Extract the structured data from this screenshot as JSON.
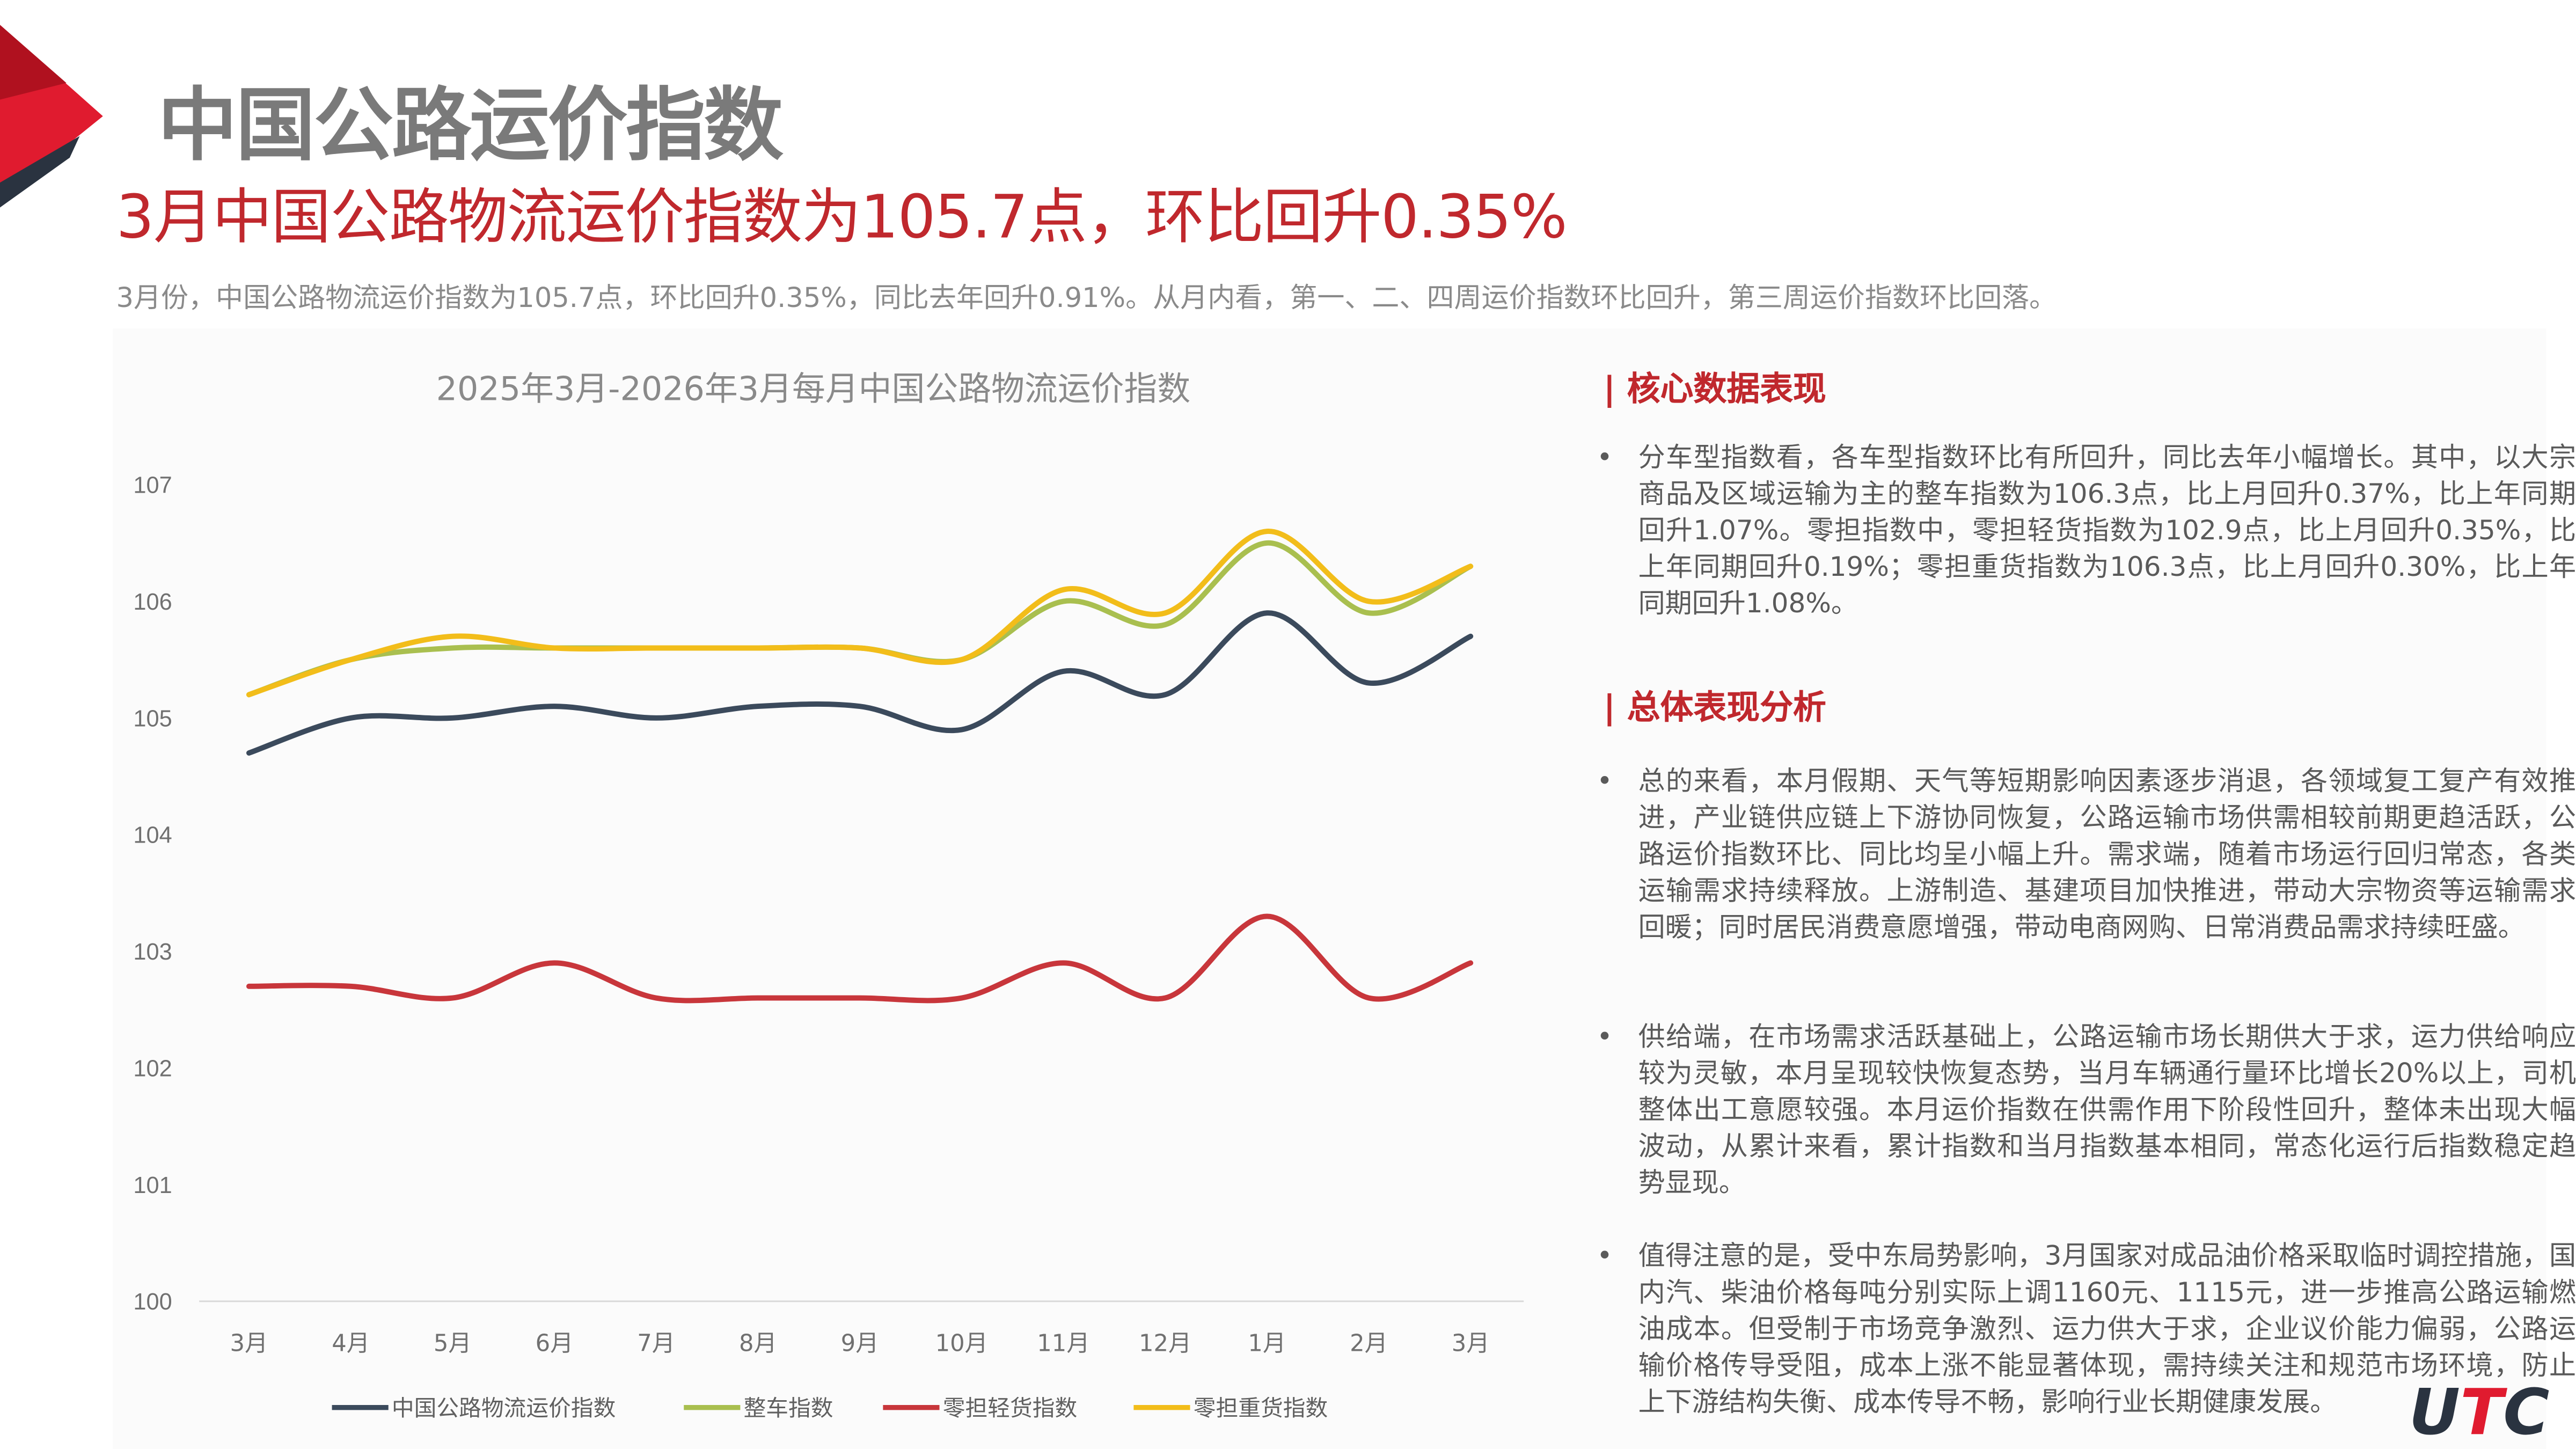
{
  "header": {
    "title": "中国公路运价指数",
    "headline": "3月中国公路物流运价指数为105.7点，环比回升0.35%",
    "summary": "3月份，中国公路物流运价指数为105.7点，环比回升0.35%，同比去年回升0.91%。从月内看，第一、二、四周运价指数环比回升，第三周运价指数环比回落。"
  },
  "chart_data": {
    "type": "line",
    "title": "2025年3月-2026年3月每月中国公路物流运价指数",
    "categories": [
      "3月",
      "4月",
      "5月",
      "6月",
      "7月",
      "8月",
      "9月",
      "10月",
      "11月",
      "12月",
      "1月",
      "2月",
      "3月"
    ],
    "ylim": [
      100,
      107
    ],
    "yticks": [
      "100",
      "101",
      "102",
      "103",
      "104",
      "105",
      "106",
      "107"
    ],
    "grid": false,
    "legend": "bottom",
    "series": [
      {
        "name": "中国公路物流运价指数",
        "color": "#3b4a5c",
        "values": [
          104.7,
          105.0,
          105.0,
          105.1,
          105.0,
          105.1,
          105.1,
          104.9,
          105.4,
          105.2,
          105.9,
          105.3,
          105.7
        ]
      },
      {
        "name": "整车指数",
        "color": "#a9bf4f",
        "values": [
          105.2,
          105.5,
          105.6,
          105.6,
          105.6,
          105.6,
          105.6,
          105.5,
          106.0,
          105.8,
          106.5,
          105.9,
          106.3
        ]
      },
      {
        "name": "零担轻货指数",
        "color": "#c8363b",
        "values": [
          102.7,
          102.7,
          102.6,
          102.9,
          102.6,
          102.6,
          102.6,
          102.6,
          102.9,
          102.6,
          103.3,
          102.6,
          102.9
        ]
      },
      {
        "name": "零担重货指数",
        "color": "#f2bd1a",
        "values": [
          105.2,
          105.5,
          105.7,
          105.6,
          105.6,
          105.6,
          105.6,
          105.5,
          106.1,
          105.9,
          106.6,
          106.0,
          106.3
        ]
      }
    ]
  },
  "panel": {
    "section1_title": "| 核心数据表现",
    "section1_bullets": [
      "分车型指数看，各车型指数环比有所回升，同比去年小幅增长。其中，以大宗商品及区域运输为主的整车指数为106.3点，比上月回升0.37%，比上年同期回升1.07%。零担指数中，零担轻货指数为102.9点，比上月回升0.35%，比上年同期回升0.19%；零担重货指数为106.3点，比上月回升0.30%，比上年同期回升1.08%。"
    ],
    "section2_title": "| 总体表现分析",
    "section2_bullets": [
      "总的来看，本月假期、天气等短期影响因素逐步消退，各领域复工复产有效推进，产业链供应链上下游协同恢复，公路运输市场供需相较前期更趋活跃，公路运价指数环比、同比均呈小幅上升。需求端，随着市场运行回归常态，各类运输需求持续释放。上游制造、基建项目加快推进，带动大宗物资等运输需求回暖；同时居民消费意愿增强，带动电商网购、日常消费品需求持续旺盛。",
      "供给端，在市场需求活跃基础上，公路运输市场长期供大于求，运力供给响应较为灵敏，本月呈现较快恢复态势，当月车辆通行量环比增长20%以上，司机整体出工意愿较强。本月运价指数在供需作用下阶段性回升，整体未出现大幅波动，从累计来看，累计指数和当月指数基本相同，常态化运行后指数稳定趋势显现。",
      "值得注意的是，受中东局势影响，3月国家对成品油价格采取临时调控措施，国内汽、柴油价格每吨分别实际上调1160元、1115元，进一步推高公路运输燃油成本。但受制于市场竞争激烈、运力供大于求，企业议价能力偏弱，公路运输价格传导受阻，成本上涨不能显著体现，需持续关注和规范市场环境，防止上下游结构失衡、成本传导不畅，影响行业长期健康发展。"
    ],
    "bullet_char": "•"
  },
  "logo": "UTC",
  "colors": {
    "accent": "#c0282d",
    "logo_red": "#e01b2f",
    "dark": "#2a3340"
  }
}
